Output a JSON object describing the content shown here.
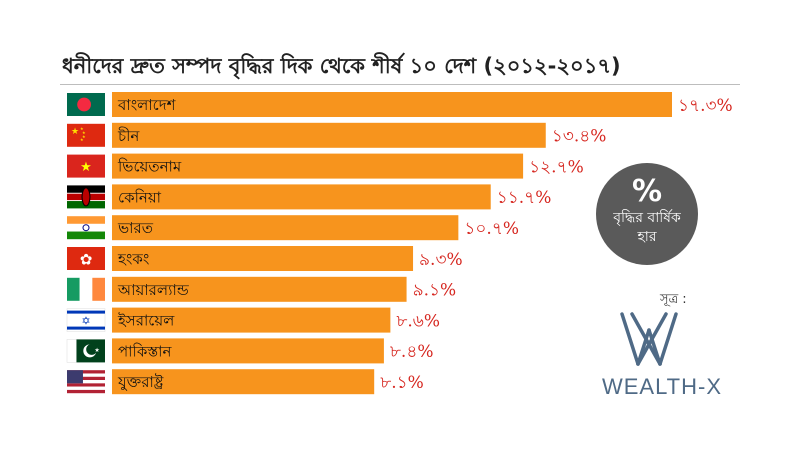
{
  "chart_data": {
    "type": "bar",
    "orientation": "horizontal",
    "title": "ধনীদের দ্রুত সম্পদ বৃদ্ধির দিক থেকে শীর্ষ ১০ দেশ (২০১২-২০১৭)",
    "categories": [
      "বাংলাদেশ",
      "চীন",
      "ভিয়েতনাম",
      "কেনিয়া",
      "ভারত",
      "হংকং",
      "আয়ারল্যান্ড",
      "ইসরায়েল",
      "পাকিস্তান",
      "যুক্তরাষ্ট্র"
    ],
    "values": [
      17.3,
      13.4,
      12.7,
      11.7,
      10.7,
      9.3,
      9.1,
      8.6,
      8.4,
      8.1
    ],
    "value_labels": [
      "১৭.৩%",
      "১৩.৪%",
      "১২.৭%",
      "১১.৭%",
      "১০.৭%",
      "৯.৩%",
      "৯.১%",
      "৮.৬%",
      "৮.৪%",
      "৮.১%"
    ],
    "flags": [
      "bangladesh-flag",
      "china-flag",
      "vietnam-flag",
      "kenya-flag",
      "india-flag",
      "hongkong-flag",
      "ireland-flag",
      "israel-flag",
      "pakistan-flag",
      "usa-flag"
    ],
    "bar_color": "#f7941d",
    "value_color": "#d6261f",
    "xlim": [
      0,
      17.3
    ],
    "grid": false,
    "legend": "none"
  },
  "badge": {
    "symbol": "%",
    "line1": "বৃদ্ধির বার্ষিক",
    "line2": "হার",
    "color": "#5a5a5a"
  },
  "source": {
    "label": "সূত্র :",
    "brand": "WEALTH-X",
    "brand_color": "#4f6a86",
    "logo_icon": "wealthx-logo-icon"
  }
}
